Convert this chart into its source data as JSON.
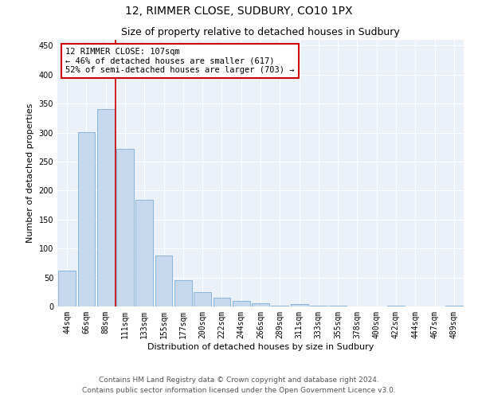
{
  "title": "12, RIMMER CLOSE, SUDBURY, CO10 1PX",
  "subtitle": "Size of property relative to detached houses in Sudbury",
  "xlabel": "Distribution of detached houses by size in Sudbury",
  "ylabel": "Number of detached properties",
  "annotation_line1": "12 RIMMER CLOSE: 107sqm",
  "annotation_line2": "← 46% of detached houses are smaller (617)",
  "annotation_line3": "52% of semi-detached houses are larger (703) →",
  "footer_line1": "Contains HM Land Registry data © Crown copyright and database right 2024.",
  "footer_line2": "Contains public sector information licensed under the Open Government Licence v3.0.",
  "bin_labels": [
    "44sqm",
    "66sqm",
    "88sqm",
    "111sqm",
    "133sqm",
    "155sqm",
    "177sqm",
    "200sqm",
    "222sqm",
    "244sqm",
    "266sqm",
    "289sqm",
    "311sqm",
    "333sqm",
    "355sqm",
    "378sqm",
    "400sqm",
    "422sqm",
    "444sqm",
    "467sqm",
    "489sqm"
  ],
  "bar_values": [
    62,
    301,
    340,
    272,
    184,
    88,
    46,
    25,
    15,
    10,
    5,
    2,
    4,
    1,
    1,
    0,
    0,
    1,
    0,
    0,
    1
  ],
  "bar_color": "#c5d8ed",
  "bar_edge_color": "#7aaed6",
  "vline_color": "#cc0000",
  "vline_x": 2.5,
  "ylim": [
    0,
    460
  ],
  "yticks": [
    0,
    50,
    100,
    150,
    200,
    250,
    300,
    350,
    400,
    450
  ],
  "background_color": "#eaf1f9",
  "grid_color": "#ffffff",
  "title_fontsize": 10,
  "subtitle_fontsize": 9,
  "axis_label_fontsize": 8,
  "tick_fontsize": 7,
  "annotation_fontsize": 7.5,
  "footer_fontsize": 6.5
}
